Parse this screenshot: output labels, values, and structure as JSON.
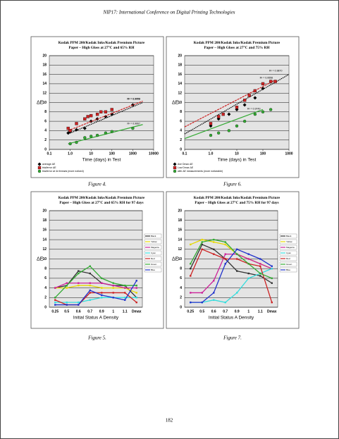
{
  "header": "NIP17: International Conference on Digital Printing Technologies",
  "page_number": "182",
  "chart_data": [
    {
      "type": "scatter",
      "caption": "Figure 4.",
      "title": [
        "Kodak PPM 200/Kodak Inks/Kodak Premium Picture",
        "Paper – High Gloss at 27°C and 65% RH"
      ],
      "x_label": "Time (days) in Test",
      "y_label": "ΔE",
      "log_x": true,
      "xlim": [
        0.1,
        10000
      ],
      "xticks": [
        0.1,
        {
          "value": 1,
          "label": "1.0"
        },
        10,
        100,
        1000,
        10000
      ],
      "ylim": [
        0,
        20
      ],
      "yticks": [
        0,
        2,
        4,
        6,
        8,
        10,
        12,
        14,
        16,
        18,
        20
      ],
      "grid": true,
      "series": [
        {
          "name": "average ΔE",
          "color": "#000000",
          "marker": "diamond",
          "x": [
            0.8,
            1,
            2,
            5,
            10,
            20,
            50,
            100,
            1000
          ],
          "values": [
            3.5,
            3.8,
            4.2,
            4.5,
            6,
            6.5,
            7,
            7.5,
            9.5
          ],
          "trend": {
            "x": [
              0.8,
              3000
            ],
            "values": [
              3.3,
              10
            ]
          },
          "r2_label": "R² = 0.9772"
        },
        {
          "name": "trial/error ΔE",
          "color": "#cc2222",
          "marker": "square",
          "x": [
            0.8,
            1,
            2,
            5,
            7,
            10,
            20,
            30,
            50,
            100
          ],
          "values": [
            4.5,
            4,
            5.5,
            6.5,
            7,
            7.2,
            7.5,
            8,
            8,
            8.5
          ],
          "trend": {
            "x": [
              0.8,
              3000
            ],
            "values": [
              4,
              10.3
            ]
          },
          "r2_label": "R² = 0.9656"
        },
        {
          "name": "trial/error at 4x threads (more noticed)",
          "color": "#33aa33",
          "marker": "circle",
          "x": [
            1,
            2,
            5,
            10,
            20,
            50,
            100,
            1000
          ],
          "values": [
            1.2,
            1.5,
            2.5,
            2.8,
            3,
            3.5,
            3.8,
            4.5
          ],
          "trend": {
            "x": [
              0.8,
              3000
            ],
            "values": [
              1.2,
              5.3
            ]
          },
          "r2_label": "R² = 0.9667"
        }
      ]
    },
    {
      "type": "scatter",
      "caption": "Figure 6.",
      "title": [
        "Kodak PPM 200/Kodak Inks/Kodak Premium Picture",
        "Paper – High Gloss at 27°C and 75% RH"
      ],
      "x_label": "Time (days) in Test",
      "y_label": "ΔE",
      "log_x": true,
      "xlim": [
        0.1,
        1000
      ],
      "xticks": [
        0.1,
        {
          "value": 1,
          "label": "1.0"
        },
        10,
        100,
        1000
      ],
      "ylim": [
        0,
        20
      ],
      "yticks": [
        0,
        2,
        4,
        6,
        8,
        10,
        12,
        14,
        16,
        18,
        20
      ],
      "grid": true,
      "series": [
        {
          "name": "Ave Dmax ΔE",
          "color": "#000000",
          "marker": "diamond",
          "x": [
            1,
            2,
            5,
            10,
            20,
            50,
            100,
            200
          ],
          "values": [
            5,
            6.5,
            7.5,
            8.5,
            9.5,
            11,
            13,
            14.5
          ],
          "trend": {
            "x": [
              0.1,
              1000
            ],
            "values": [
              3.3,
              16
            ]
          },
          "r2_label": "R² = 0.9870"
        },
        {
          "name": "Low Dmax ΔE",
          "color": "#cc2222",
          "marker": "square",
          "x": [
            1,
            2,
            3,
            10,
            20,
            30,
            50,
            100,
            200,
            300
          ],
          "values": [
            5.5,
            7,
            7.5,
            9,
            10.5,
            11.5,
            12.5,
            14,
            14.5,
            14.5
          ],
          "trend": {
            "x": [
              0.1,
              300
            ],
            "values": [
              4.8,
              14.8
            ]
          },
          "r2_label": "R² = 0.9558"
        },
        {
          "name": "with ΔE measurements (more noticeable)",
          "color": "#33aa33",
          "marker": "circle",
          "x": [
            1,
            2,
            5,
            10,
            20,
            50,
            100,
            200
          ],
          "values": [
            3,
            3.5,
            4,
            5,
            6,
            7.5,
            8,
            8.5
          ],
          "trend": {
            "x": [
              0.1,
              100
            ],
            "values": [
              2.3,
              8.5
            ]
          },
          "r2_label": "R² = 0.9749"
        }
      ]
    },
    {
      "type": "line",
      "caption": "Figure 5.",
      "title": [
        "Kodak PPM 200/Kodak Inks/Kodak Premium Picture",
        "Paper – High Gloss at 27°C and 65% RH for 97 days"
      ],
      "x_label": "Initial Status A Density",
      "y_label": "ΔE",
      "categories": [
        "0.25",
        "0.5",
        "0.6",
        "0.7",
        "0.9",
        "1",
        "1.1",
        "Dmax"
      ],
      "ylim": [
        0,
        20
      ],
      "yticks": [
        0,
        2,
        4,
        6,
        8,
        10,
        12,
        14,
        16,
        18,
        20
      ],
      "grid": true,
      "series": [
        {
          "name": "Black",
          "color": "#333333",
          "values": [
            4,
            4.5,
            7.5,
            7,
            5,
            4.5,
            4.5,
            2
          ]
        },
        {
          "name": "Yellow",
          "color": "#e6d800",
          "values": [
            4,
            4,
            4.5,
            4.5,
            4,
            4,
            4,
            3
          ]
        },
        {
          "name": "Magenta",
          "color": "#cc2299",
          "values": [
            4,
            5,
            5,
            5,
            5,
            4.5,
            4,
            4
          ]
        },
        {
          "name": "Cyan",
          "color": "#33dddd",
          "values": [
            1,
            1,
            1,
            1.5,
            2,
            2,
            2,
            2
          ]
        },
        {
          "name": "Red",
          "color": "#cc2222",
          "values": [
            1.5,
            0.5,
            0.5,
            3,
            3,
            3,
            3,
            1
          ]
        },
        {
          "name": "Green",
          "color": "#33aa33",
          "values": [
            2,
            4.5,
            7,
            8.5,
            6,
            5,
            4.5,
            4.5
          ]
        },
        {
          "name": "Blue",
          "color": "#2233cc",
          "values": [
            0.5,
            0.5,
            0.5,
            3.5,
            2.5,
            2,
            1.5,
            5.5
          ]
        }
      ]
    },
    {
      "type": "line",
      "caption": "Figure 7.",
      "title": [
        "Kodak PPM 200/Kodak Inks/Kodak Premium Picture",
        "Paper – High Gloss at 27°C and 75% RH for 97 days"
      ],
      "x_label": "Initial Status A Density",
      "y_label": "ΔE",
      "categories": [
        "0.25",
        "0.5",
        "0.6",
        "0.7",
        "0.9",
        "1",
        "1.1",
        "Dmax"
      ],
      "ylim": [
        0,
        20
      ],
      "yticks": [
        0,
        2,
        4,
        6,
        8,
        10,
        12,
        14,
        16,
        18,
        20
      ],
      "grid": true,
      "series": [
        {
          "name": "Black",
          "color": "#333333",
          "values": [
            8,
            13,
            12,
            10,
            7.5,
            7,
            6.5,
            5
          ]
        },
        {
          "name": "Yellow",
          "color": "#e6d800",
          "values": [
            13,
            14,
            13.5,
            13,
            11,
            10,
            9,
            8
          ]
        },
        {
          "name": "Magenta",
          "color": "#cc2299",
          "values": [
            3,
            3,
            5.5,
            11,
            11,
            10,
            9,
            8
          ]
        },
        {
          "name": "Cyan",
          "color": "#33dddd",
          "values": [
            1,
            1,
            1.5,
            1,
            3,
            6,
            7,
            8
          ]
        },
        {
          "name": "Red",
          "color": "#cc2222",
          "values": [
            6.5,
            12,
            11,
            10,
            10,
            9,
            8.5,
            1
          ]
        },
        {
          "name": "Green",
          "color": "#33aa33",
          "values": [
            9,
            13.5,
            14,
            13.5,
            11,
            9,
            7,
            6
          ]
        },
        {
          "name": "Blue",
          "color": "#2233cc",
          "values": [
            1,
            1,
            3,
            9,
            12,
            11,
            10,
            8.5
          ]
        }
      ]
    }
  ]
}
